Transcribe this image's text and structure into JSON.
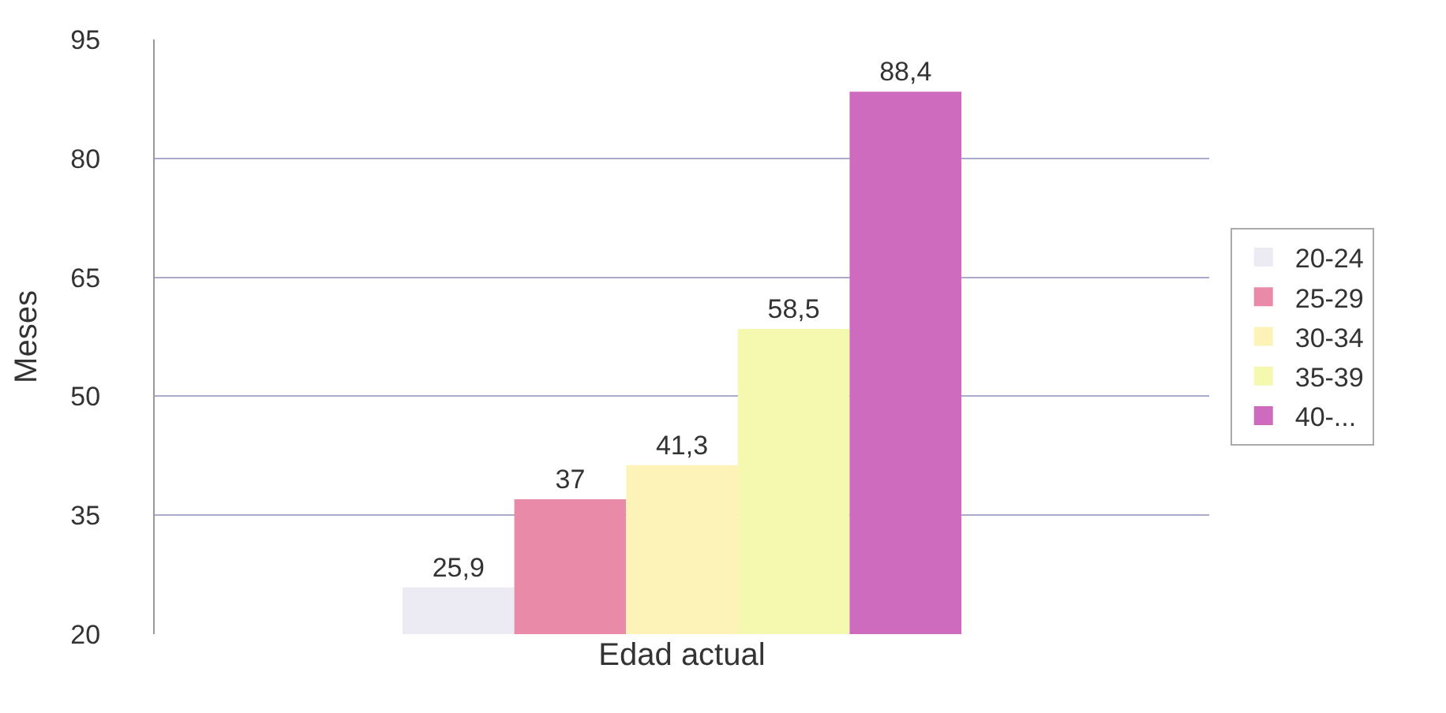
{
  "chart_data": {
    "type": "bar",
    "xlabel": "Edad actual",
    "ylabel": "Meses",
    "categories": [
      null
    ],
    "series": [
      {
        "name": "20-24",
        "color": "#ecebf3",
        "values": [
          25.9
        ],
        "value_labels": [
          "25,9"
        ]
      },
      {
        "name": "25-29",
        "color": "#e98aa8",
        "values": [
          37
        ],
        "value_labels": [
          "37"
        ]
      },
      {
        "name": "30-34",
        "color": "#fdf3b8",
        "values": [
          41.3
        ],
        "value_labels": [
          "41,3"
        ]
      },
      {
        "name": "35-39",
        "color": "#f5f9b0",
        "values": [
          58.5
        ],
        "value_labels": [
          "58,5"
        ]
      },
      {
        "name": "40-...",
        "color": "#cf6bbf",
        "values": [
          88.4
        ],
        "value_labels": [
          "88,4"
        ]
      }
    ],
    "ylim": [
      20,
      95
    ],
    "yticks": [
      20,
      35,
      50,
      65,
      80,
      95
    ],
    "grid": "y",
    "legend": "right"
  }
}
